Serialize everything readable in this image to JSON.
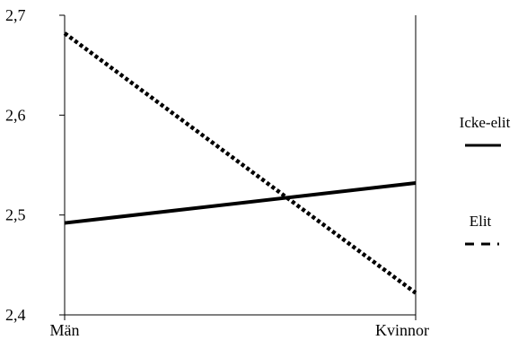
{
  "chart_data": {
    "type": "line",
    "categories": [
      "Män",
      "Kvinnor"
    ],
    "series": [
      {
        "name": "Icke-elit",
        "values": [
          2.492,
          2.532
        ],
        "style": "solid"
      },
      {
        "name": "Elit",
        "values": [
          2.682,
          2.422
        ],
        "style": "dotted"
      }
    ],
    "ylim": [
      2.4,
      2.7
    ],
    "yticks": [
      2.4,
      2.5,
      2.6,
      2.7
    ],
    "ytick_labels": [
      "2,4",
      "2,5",
      "2,6",
      "2,7"
    ],
    "grid": false,
    "legend_position": "right",
    "title": "",
    "xlabel": "",
    "ylabel": ""
  },
  "colors": {
    "line": "#000000",
    "axis": "#000000"
  }
}
